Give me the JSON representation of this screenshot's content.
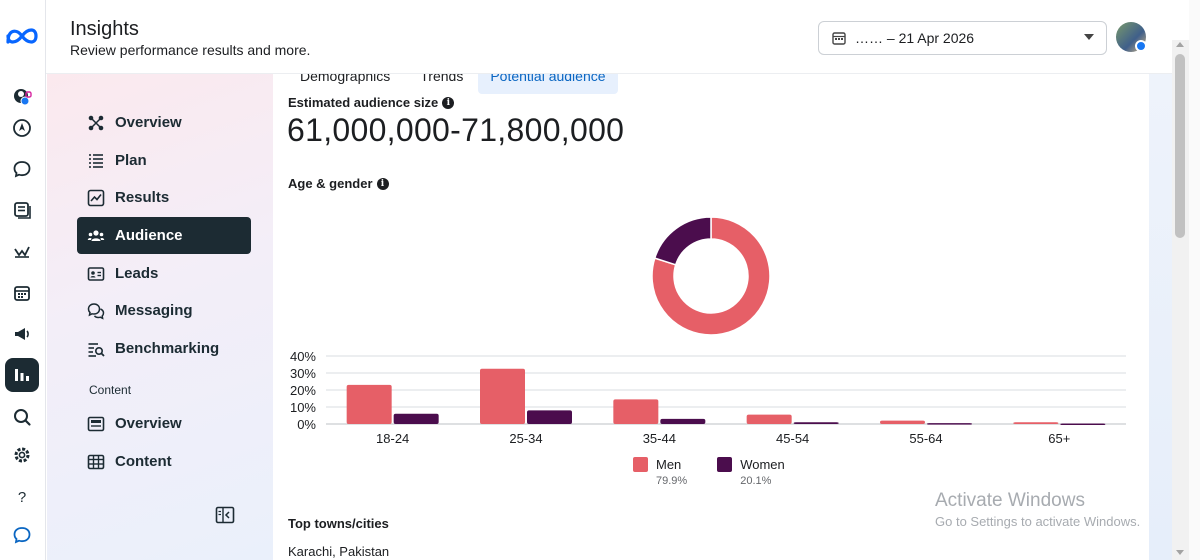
{
  "header": {
    "title": "Insights",
    "subtitle": "Review performance results and more.",
    "date_range": "…… – 21 Apr 2026"
  },
  "nav": {
    "items": [
      {
        "label": "Overview",
        "icon": "hub-icon"
      },
      {
        "label": "Plan",
        "icon": "list-icon"
      },
      {
        "label": "Results",
        "icon": "line-chart-icon"
      },
      {
        "label": "Audience",
        "icon": "people-icon",
        "active": true
      },
      {
        "label": "Leads",
        "icon": "id-card-icon"
      },
      {
        "label": "Messaging",
        "icon": "chat-bubbles-icon"
      },
      {
        "label": "Benchmarking",
        "icon": "benchmark-icon"
      }
    ],
    "section_label": "Content",
    "content_items": [
      {
        "label": "Overview",
        "icon": "content-overview-icon"
      },
      {
        "label": "Content",
        "icon": "grid-table-icon"
      }
    ]
  },
  "tabs": [
    {
      "label": "Demographics"
    },
    {
      "label": "Trends"
    },
    {
      "label": "Potential audience",
      "active": true
    }
  ],
  "audience": {
    "estimated_label": "Estimated audience size",
    "estimated_value": "61,000,000-71,800,000",
    "age_gender_label": "Age & gender",
    "top_towns_label": "Top towns/cities",
    "top_town_1": "Karachi, Pakistan"
  },
  "legend": {
    "men_label": "Men",
    "men_pct": "79.9%",
    "women_label": "Women",
    "women_pct": "20.1%"
  },
  "colors": {
    "men": "#e65f67",
    "women": "#4b0d4d",
    "accent": "#0a66c2",
    "nav_active": "#1c2b33"
  },
  "chart_data": [
    {
      "type": "pie",
      "title": "",
      "labels": [
        "Men",
        "Women"
      ],
      "values": [
        79.9,
        20.1
      ]
    },
    {
      "type": "bar",
      "categories": [
        "18-24",
        "25-34",
        "35-44",
        "45-54",
        "55-64",
        "65+"
      ],
      "series": [
        {
          "name": "Men",
          "values": [
            23.0,
            32.5,
            14.5,
            5.5,
            2.0,
            1.0
          ]
        },
        {
          "name": "Women",
          "values": [
            6.0,
            8.0,
            3.0,
            1.0,
            0.5,
            0.3
          ]
        }
      ],
      "ylim": [
        0,
        40
      ],
      "yticks": [
        "40%",
        "30%",
        "20%",
        "10%",
        "0%"
      ],
      "grid": true,
      "legend": "bottom"
    }
  ],
  "watermark": {
    "title": "Activate Windows",
    "subtitle": "Go to Settings to activate Windows."
  },
  "rail_icons": [
    "meta-logo-icon",
    "account-switcher-icon",
    "compass-icon",
    "chat-icon",
    "pages-icon",
    "activity-icon",
    "calendar-icon",
    "megaphone-icon",
    "insights-icon",
    "search-icon",
    "settings-icon",
    "help-icon",
    "feedback-icon"
  ]
}
